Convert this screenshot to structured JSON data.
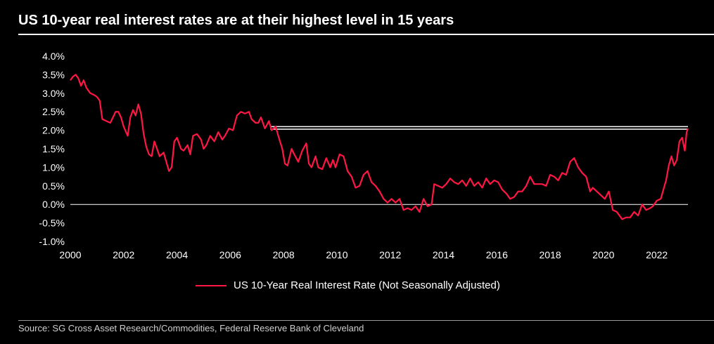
{
  "title": "US 10-year real interest rates are at their highest level in 15 years",
  "source": "Source: SG Cross Asset Research/Commodities, Federal Reserve Bank of Cleveland",
  "colors": {
    "background": "#000000",
    "series": "#ff1744",
    "reference": "#ffffff"
  },
  "chart_data": {
    "type": "line",
    "xlim": [
      2000,
      2023.17
    ],
    "ylim": [
      -1.0,
      4.0
    ],
    "xticks": [
      "2000",
      "2002",
      "2004",
      "2006",
      "2008",
      "2010",
      "2012",
      "2014",
      "2016",
      "2018",
      "2020",
      "2022"
    ],
    "yticks": [
      "4.0%",
      "3.5%",
      "3.0%",
      "2.5%",
      "2.0%",
      "1.5%",
      "1.0%",
      "0.5%",
      "0.0%",
      "-0.5%",
      "-1.0%"
    ],
    "grid": false,
    "legend_position": "bottom",
    "reference_band": {
      "x_start": 2007.5,
      "x_end": 2023.17,
      "y_low": 2.03,
      "y_high": 2.1
    },
    "series": [
      {
        "name": "US 10-Year Real Interest Rate (Not Seasonally Adjusted)",
        "points": [
          [
            2000.0,
            3.35
          ],
          [
            2000.1,
            3.45
          ],
          [
            2000.2,
            3.5
          ],
          [
            2000.3,
            3.4
          ],
          [
            2000.4,
            3.2
          ],
          [
            2000.5,
            3.35
          ],
          [
            2000.6,
            3.15
          ],
          [
            2000.75,
            3.0
          ],
          [
            2000.9,
            2.95
          ],
          [
            2001.0,
            2.9
          ],
          [
            2001.1,
            2.8
          ],
          [
            2001.2,
            2.3
          ],
          [
            2001.35,
            2.25
          ],
          [
            2001.5,
            2.2
          ],
          [
            2001.6,
            2.35
          ],
          [
            2001.7,
            2.5
          ],
          [
            2001.8,
            2.5
          ],
          [
            2001.9,
            2.35
          ],
          [
            2002.0,
            2.1
          ],
          [
            2002.15,
            1.85
          ],
          [
            2002.25,
            2.35
          ],
          [
            2002.35,
            2.55
          ],
          [
            2002.45,
            2.4
          ],
          [
            2002.55,
            2.7
          ],
          [
            2002.65,
            2.45
          ],
          [
            2002.75,
            1.9
          ],
          [
            2002.85,
            1.55
          ],
          [
            2002.95,
            1.35
          ],
          [
            2003.05,
            1.3
          ],
          [
            2003.15,
            1.7
          ],
          [
            2003.25,
            1.5
          ],
          [
            2003.35,
            1.3
          ],
          [
            2003.5,
            1.4
          ],
          [
            2003.6,
            1.15
          ],
          [
            2003.7,
            0.9
          ],
          [
            2003.8,
            1.0
          ],
          [
            2003.9,
            1.7
          ],
          [
            2004.0,
            1.8
          ],
          [
            2004.15,
            1.5
          ],
          [
            2004.25,
            1.45
          ],
          [
            2004.4,
            1.6
          ],
          [
            2004.5,
            1.35
          ],
          [
            2004.6,
            1.85
          ],
          [
            2004.75,
            1.9
          ],
          [
            2004.9,
            1.75
          ],
          [
            2005.0,
            1.5
          ],
          [
            2005.1,
            1.6
          ],
          [
            2005.25,
            1.85
          ],
          [
            2005.4,
            1.7
          ],
          [
            2005.55,
            1.95
          ],
          [
            2005.7,
            1.75
          ],
          [
            2005.8,
            1.85
          ],
          [
            2005.95,
            2.05
          ],
          [
            2006.1,
            2.0
          ],
          [
            2006.25,
            2.4
          ],
          [
            2006.4,
            2.5
          ],
          [
            2006.55,
            2.45
          ],
          [
            2006.7,
            2.5
          ],
          [
            2006.8,
            2.3
          ],
          [
            2006.95,
            2.2
          ],
          [
            2007.05,
            2.2
          ],
          [
            2007.15,
            2.35
          ],
          [
            2007.3,
            2.05
          ],
          [
            2007.45,
            2.25
          ],
          [
            2007.55,
            2.0
          ],
          [
            2007.7,
            2.1
          ],
          [
            2007.8,
            1.85
          ],
          [
            2007.95,
            1.5
          ],
          [
            2008.05,
            1.1
          ],
          [
            2008.15,
            1.05
          ],
          [
            2008.3,
            1.5
          ],
          [
            2008.4,
            1.35
          ],
          [
            2008.55,
            1.15
          ],
          [
            2008.7,
            1.45
          ],
          [
            2008.85,
            1.65
          ],
          [
            2008.95,
            1.1
          ],
          [
            2009.05,
            1.0
          ],
          [
            2009.2,
            1.3
          ],
          [
            2009.3,
            1.0
          ],
          [
            2009.45,
            0.95
          ],
          [
            2009.6,
            1.25
          ],
          [
            2009.75,
            1.0
          ],
          [
            2009.85,
            1.2
          ],
          [
            2009.95,
            1.0
          ],
          [
            2010.1,
            1.35
          ],
          [
            2010.25,
            1.3
          ],
          [
            2010.4,
            0.9
          ],
          [
            2010.55,
            0.75
          ],
          [
            2010.7,
            0.45
          ],
          [
            2010.85,
            0.5
          ],
          [
            2011.0,
            0.8
          ],
          [
            2011.15,
            0.9
          ],
          [
            2011.3,
            0.6
          ],
          [
            2011.45,
            0.5
          ],
          [
            2011.6,
            0.35
          ],
          [
            2011.75,
            0.15
          ],
          [
            2011.9,
            0.05
          ],
          [
            2012.05,
            0.15
          ],
          [
            2012.2,
            0.05
          ],
          [
            2012.35,
            0.15
          ],
          [
            2012.5,
            -0.15
          ],
          [
            2012.65,
            -0.1
          ],
          [
            2012.8,
            -0.15
          ],
          [
            2012.95,
            -0.05
          ],
          [
            2013.1,
            -0.2
          ],
          [
            2013.25,
            0.15
          ],
          [
            2013.4,
            -0.05
          ],
          [
            2013.55,
            0.0
          ],
          [
            2013.65,
            0.55
          ],
          [
            2013.8,
            0.5
          ],
          [
            2013.95,
            0.45
          ],
          [
            2014.1,
            0.55
          ],
          [
            2014.25,
            0.7
          ],
          [
            2014.4,
            0.6
          ],
          [
            2014.55,
            0.55
          ],
          [
            2014.7,
            0.65
          ],
          [
            2014.85,
            0.5
          ],
          [
            2015.0,
            0.7
          ],
          [
            2015.15,
            0.5
          ],
          [
            2015.3,
            0.6
          ],
          [
            2015.45,
            0.45
          ],
          [
            2015.6,
            0.7
          ],
          [
            2015.75,
            0.55
          ],
          [
            2015.9,
            0.65
          ],
          [
            2016.05,
            0.6
          ],
          [
            2016.2,
            0.4
          ],
          [
            2016.35,
            0.3
          ],
          [
            2016.5,
            0.15
          ],
          [
            2016.65,
            0.2
          ],
          [
            2016.8,
            0.35
          ],
          [
            2016.95,
            0.35
          ],
          [
            2017.1,
            0.5
          ],
          [
            2017.25,
            0.75
          ],
          [
            2017.4,
            0.55
          ],
          [
            2017.55,
            0.55
          ],
          [
            2017.7,
            0.55
          ],
          [
            2017.85,
            0.5
          ],
          [
            2018.0,
            0.8
          ],
          [
            2018.15,
            0.75
          ],
          [
            2018.3,
            0.65
          ],
          [
            2018.45,
            0.85
          ],
          [
            2018.6,
            0.8
          ],
          [
            2018.75,
            1.15
          ],
          [
            2018.9,
            1.25
          ],
          [
            2019.05,
            1.0
          ],
          [
            2019.2,
            0.85
          ],
          [
            2019.35,
            0.75
          ],
          [
            2019.5,
            0.35
          ],
          [
            2019.6,
            0.45
          ],
          [
            2019.75,
            0.35
          ],
          [
            2019.9,
            0.25
          ],
          [
            2020.05,
            0.15
          ],
          [
            2020.2,
            0.35
          ],
          [
            2020.35,
            -0.15
          ],
          [
            2020.5,
            -0.2
          ],
          [
            2020.6,
            -0.3
          ],
          [
            2020.7,
            -0.4
          ],
          [
            2020.85,
            -0.35
          ],
          [
            2021.0,
            -0.35
          ],
          [
            2021.15,
            -0.2
          ],
          [
            2021.3,
            -0.3
          ],
          [
            2021.45,
            0.0
          ],
          [
            2021.6,
            -0.15
          ],
          [
            2021.75,
            -0.1
          ],
          [
            2021.85,
            -0.05
          ],
          [
            2022.0,
            0.1
          ],
          [
            2022.15,
            0.15
          ],
          [
            2022.25,
            0.4
          ],
          [
            2022.35,
            0.65
          ],
          [
            2022.45,
            1.05
          ],
          [
            2022.55,
            1.3
          ],
          [
            2022.65,
            1.05
          ],
          [
            2022.75,
            1.2
          ],
          [
            2022.85,
            1.7
          ],
          [
            2022.95,
            1.8
          ],
          [
            2023.05,
            1.45
          ],
          [
            2023.12,
            1.95
          ],
          [
            2023.17,
            2.05
          ]
        ]
      }
    ]
  }
}
